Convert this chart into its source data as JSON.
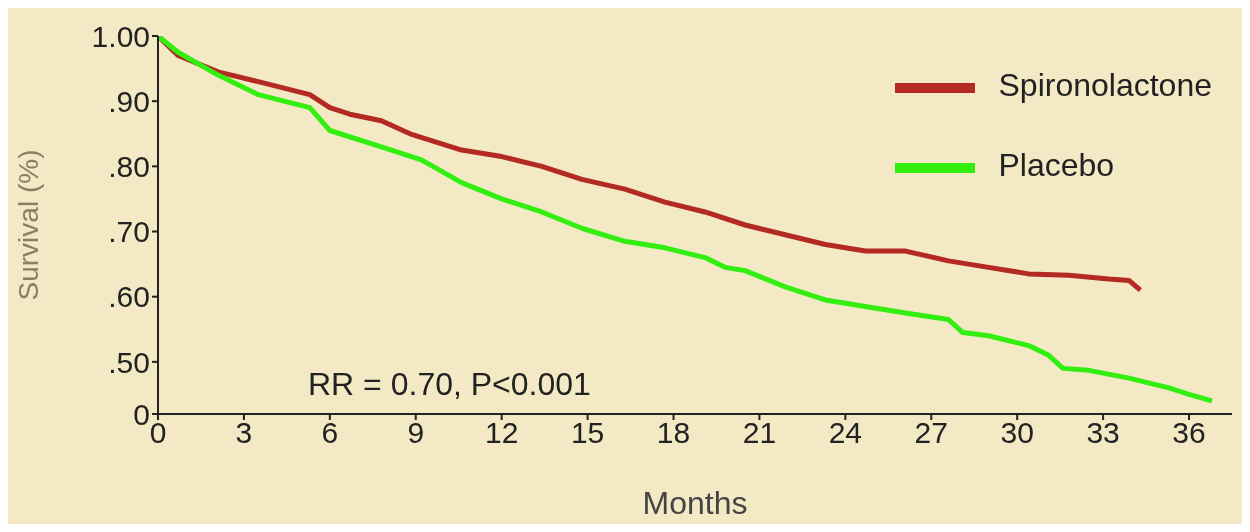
{
  "chart_data": {
    "type": "line",
    "ylabel": "Survival (%)",
    "xlabel": "Months",
    "annotations": [
      "RR = 0.70, P<0.001"
    ],
    "xlim": [
      0,
      37.5
    ],
    "xticks": [
      0,
      3,
      6,
      9,
      12,
      15,
      18,
      21,
      24,
      27,
      30,
      33,
      36
    ],
    "ylim": [
      0.42,
      1.0
    ],
    "yticks": [
      {
        "value": 0.42,
        "label": "0"
      },
      {
        "value": 0.5,
        "label": ".50"
      },
      {
        "value": 0.6,
        "label": ".60"
      },
      {
        "value": 0.7,
        "label": ".70"
      },
      {
        "value": 0.8,
        "label": ".80"
      },
      {
        "value": 0.9,
        "label": ".90"
      },
      {
        "value": 1.0,
        "label": "1.00"
      }
    ],
    "grid": false,
    "legend": "top right",
    "marker": "none",
    "line_style": "solid",
    "series": [
      {
        "name": "Spironolactone",
        "color": "#b22a22",
        "x": [
          0,
          0.7,
          2.1,
          3.5,
          5.3,
          6.0,
          6.7,
          7.8,
          8.8,
          10.6,
          12.0,
          13.4,
          14.8,
          16.3,
          17.7,
          19.1,
          20.5,
          21.9,
          23.3,
          24.7,
          26.1,
          27.6,
          29.0,
          30.4,
          31.8,
          33.2,
          33.9,
          34.3
        ],
        "values": [
          1,
          0.97,
          0.945,
          0.93,
          0.91,
          0.89,
          0.88,
          0.87,
          0.85,
          0.825,
          0.815,
          0.8,
          0.78,
          0.765,
          0.745,
          0.73,
          0.71,
          0.695,
          0.68,
          0.67,
          0.67,
          0.655,
          0.645,
          0.635,
          0.633,
          0.627,
          0.625,
          0.61
        ]
      },
      {
        "name": "Placebo",
        "color": "#33ee11",
        "x": [
          0,
          0.7,
          2.1,
          3.5,
          5.3,
          6.0,
          7.8,
          9.2,
          10.6,
          12.0,
          13.4,
          14.8,
          16.3,
          17.7,
          19.1,
          19.8,
          20.5,
          21.9,
          23.3,
          24.7,
          26.1,
          27.6,
          28.1,
          29.0,
          30.4,
          31.1,
          31.6,
          32.5,
          33.9,
          35.3,
          36.0,
          36.8
        ],
        "values": [
          1,
          0.975,
          0.94,
          0.91,
          0.89,
          0.855,
          0.83,
          0.81,
          0.775,
          0.75,
          0.73,
          0.705,
          0.685,
          0.675,
          0.66,
          0.645,
          0.64,
          0.615,
          0.595,
          0.585,
          0.575,
          0.565,
          0.545,
          0.54,
          0.525,
          0.51,
          0.49,
          0.487,
          0.475,
          0.46,
          0.45,
          0.44
        ]
      }
    ]
  }
}
